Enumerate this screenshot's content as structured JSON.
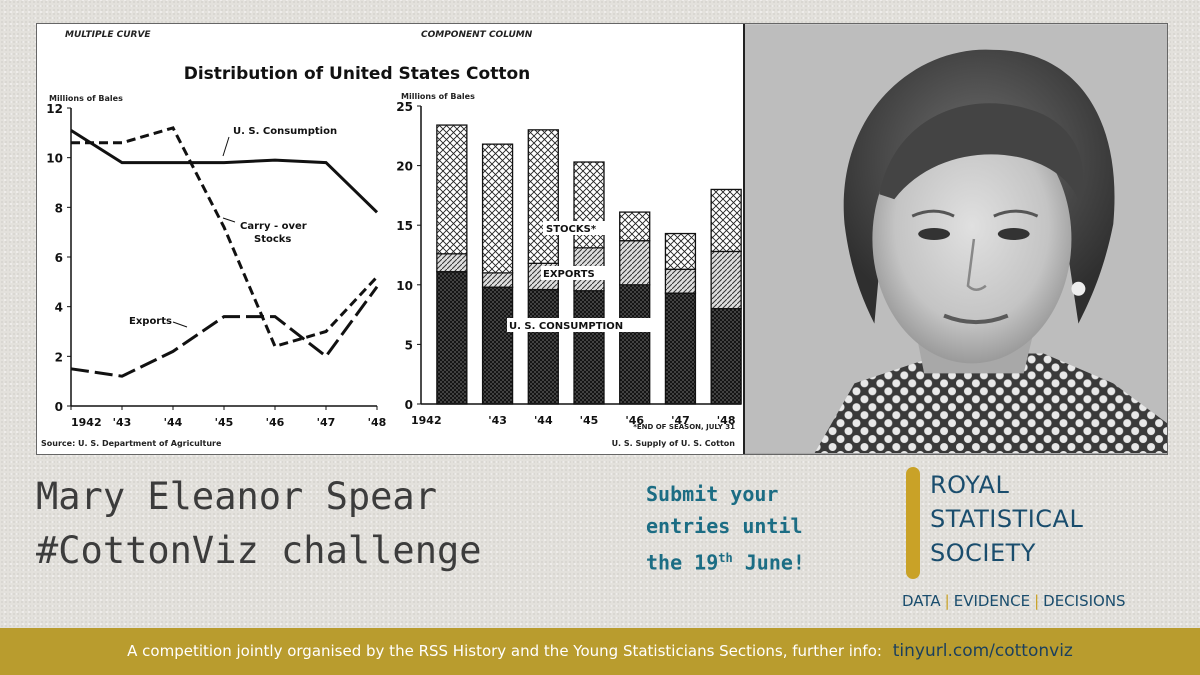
{
  "chart_data": [
    {
      "type": "line",
      "tag": "MULTIPLE CURVE",
      "title": "Distribution of United States Cotton",
      "ylabel": "Millions of Bales",
      "ylim": [
        0,
        12
      ],
      "yticks": [
        "0",
        "2",
        "4",
        "6",
        "8",
        "10",
        "12"
      ],
      "categories": [
        "1942",
        "'43",
        "'44",
        "'45",
        "'46",
        "'47",
        "'48"
      ],
      "series": [
        {
          "name": "U. S. Consumption",
          "values": [
            11.1,
            9.8,
            9.8,
            9.8,
            9.9,
            9.8,
            7.8
          ]
        },
        {
          "name": "Carry - over Stocks",
          "values": [
            10.6,
            10.6,
            11.2,
            7.2,
            2.4,
            3.0,
            5.2
          ]
        },
        {
          "name": "Exports",
          "values": [
            1.5,
            1.2,
            2.2,
            3.6,
            3.6,
            2.0,
            4.8
          ]
        }
      ],
      "source": "Source: U. S. Department of Agriculture"
    },
    {
      "type": "bar",
      "tag": "COMPONENT COLUMN",
      "ylabel": "Millions of Bales",
      "ylim": [
        0,
        25
      ],
      "yticks": [
        "0",
        "5",
        "10",
        "15",
        "20",
        "25"
      ],
      "categories": [
        "1942",
        "'43",
        "'44",
        "'45",
        "'46",
        "'47",
        "'48"
      ],
      "series": [
        {
          "name": "U. S. CONSUMPTION",
          "values": [
            11.1,
            9.8,
            9.6,
            9.5,
            10.0,
            9.3,
            8.0
          ]
        },
        {
          "name": "EXPORTS",
          "values": [
            1.5,
            1.2,
            2.2,
            3.6,
            3.7,
            2.0,
            4.8
          ]
        },
        {
          "name": "STOCKS*",
          "values": [
            10.8,
            10.8,
            11.2,
            7.2,
            2.4,
            3.0,
            5.2
          ]
        }
      ],
      "footnote": "*END OF SEASON, JULY 31",
      "caption": "U. S. Supply of U. S. Cotton"
    }
  ],
  "headline": {
    "line1": "Mary Eleanor Spear",
    "line2": "#CottonViz challenge"
  },
  "submit": {
    "line1": "Submit your",
    "line2": "entries until",
    "line3_pre": "the 19",
    "line3_sup": "th",
    "line3_post": " June!"
  },
  "logo": {
    "line1": "ROYAL",
    "line2": "STATISTICAL",
    "line3": "SOCIETY",
    "tag1": "DATA",
    "tag2": "EVIDENCE",
    "tag3": "DECISIONS"
  },
  "footer": {
    "text": "A competition jointly organised by the RSS History and the Young Statisticians Sections, further info:",
    "link": "tinyurl.com/cottonviz"
  },
  "colors": {
    "gold": "#c9a227",
    "teal": "#1c6d84",
    "navy": "#1a4d6d",
    "footer_bg": "#b99c2e"
  }
}
